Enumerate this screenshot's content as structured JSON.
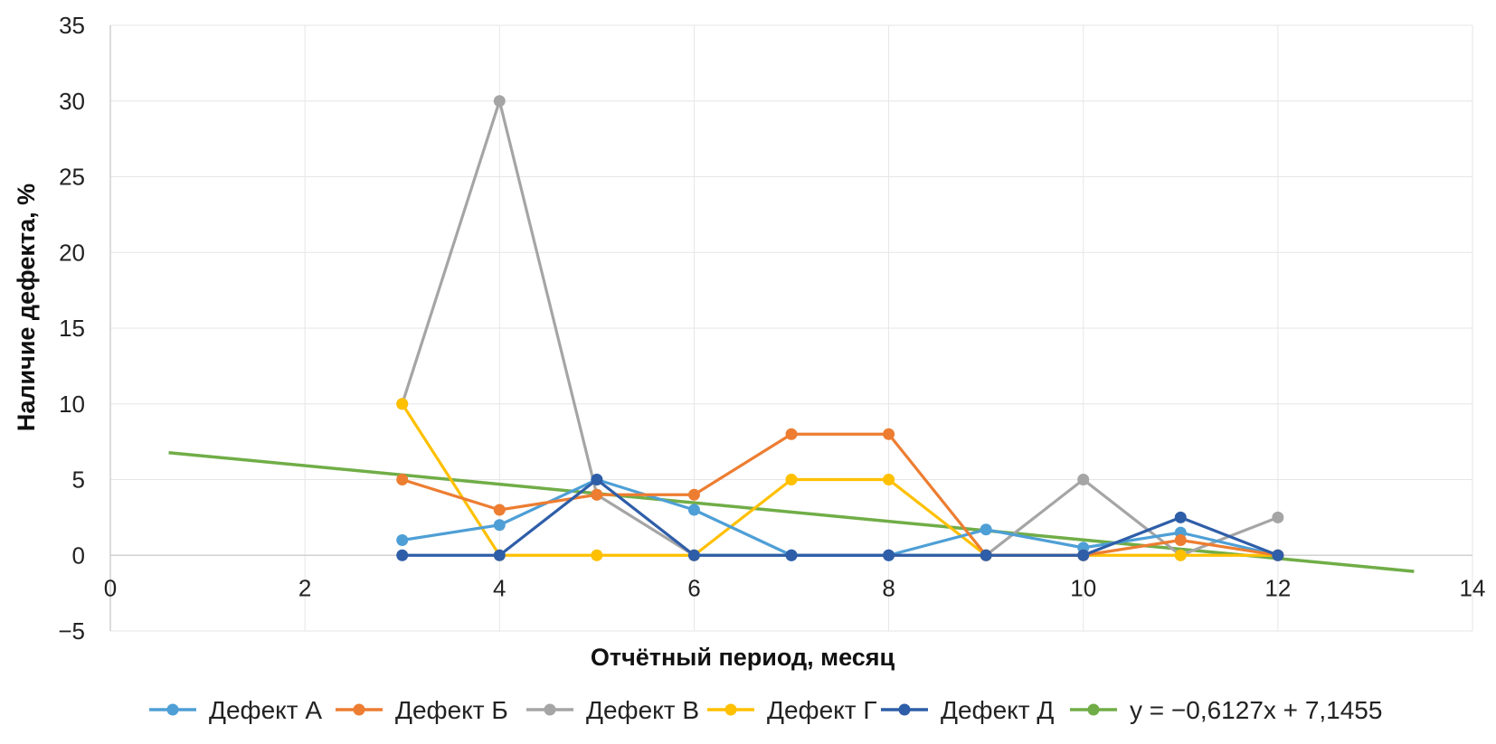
{
  "chart_data": {
    "type": "line",
    "xlabel": "Отчётный период, месяц",
    "ylabel": "Наличие дефекта, %",
    "xlim": [
      0,
      14
    ],
    "ylim": [
      -5,
      35
    ],
    "xticks": [
      0,
      2,
      4,
      6,
      8,
      10,
      12,
      14
    ],
    "yticks": [
      -5,
      0,
      5,
      10,
      15,
      20,
      25,
      30,
      35
    ],
    "ytick_labels": [
      "−5",
      "0",
      "5",
      "10",
      "15",
      "20",
      "25",
      "30",
      "35"
    ],
    "grid": true,
    "legend_position": "bottom",
    "colors": {
      "Дефект А": "#4e9fd6",
      "Дефект Б": "#ed7d31",
      "Дефект В": "#a5a5a5",
      "Дефект Г": "#ffc000",
      "Дефект Д": "#2f5ea8",
      "trend": "#70ad47"
    },
    "series": [
      {
        "name": "Дефект А",
        "x": [
          3,
          4,
          5,
          6,
          7,
          8,
          9,
          10,
          11,
          12
        ],
        "y": [
          1,
          2,
          5,
          3,
          0,
          0,
          1.7,
          0.5,
          1.5,
          0
        ]
      },
      {
        "name": "Дефект Б",
        "x": [
          3,
          4,
          5,
          6,
          7,
          8,
          9,
          10,
          11,
          12
        ],
        "y": [
          5,
          3,
          4,
          4,
          8,
          8,
          0,
          0,
          1,
          0
        ]
      },
      {
        "name": "Дефект В",
        "x": [
          3,
          4,
          5,
          6,
          7,
          8,
          9,
          10,
          11,
          12
        ],
        "y": [
          10,
          30,
          4,
          0,
          0,
          0,
          0,
          5,
          0,
          2.5
        ]
      },
      {
        "name": "Дефект Г",
        "x": [
          3,
          4,
          5,
          6,
          7,
          8,
          9,
          10,
          11,
          12
        ],
        "y": [
          10,
          0,
          0,
          0,
          5,
          5,
          0,
          0,
          0,
          0
        ]
      },
      {
        "name": "Дефект Д",
        "x": [
          3,
          4,
          5,
          6,
          7,
          8,
          9,
          10,
          11,
          12
        ],
        "y": [
          0,
          0,
          5,
          0,
          0,
          0,
          0,
          0,
          2.5,
          0
        ]
      }
    ],
    "trendline": {
      "label": "y = −0,6127x + 7,1455",
      "slope": -0.6127,
      "intercept": 7.1455,
      "x_range": [
        0.6,
        13.4
      ]
    }
  }
}
